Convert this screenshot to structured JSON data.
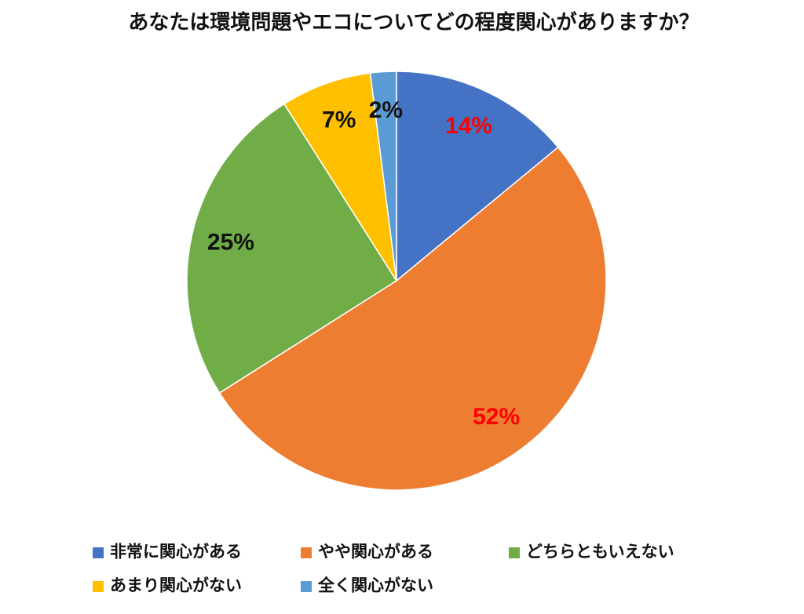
{
  "chart_data": {
    "type": "pie",
    "title": "あなたは環境問題やエコについてどの程度関心がありますか？",
    "categories": [
      "非常に関心がある",
      "やや関心がある",
      "どちらともいえない",
      "あまり関心がない",
      "全く関心がない"
    ],
    "values": [
      14,
      52,
      25,
      7,
      2
    ],
    "value_labels": [
      "14%",
      "52%",
      "25%",
      "7%",
      "2%"
    ],
    "colors": [
      "#4472c4",
      "#ed7d31",
      "#70ad47",
      "#ffc000",
      "#5b9bd5"
    ],
    "label_colors": [
      "#ff0000",
      "#ff0000",
      "#111111",
      "#111111",
      "#111111"
    ],
    "legend": "bottom"
  }
}
